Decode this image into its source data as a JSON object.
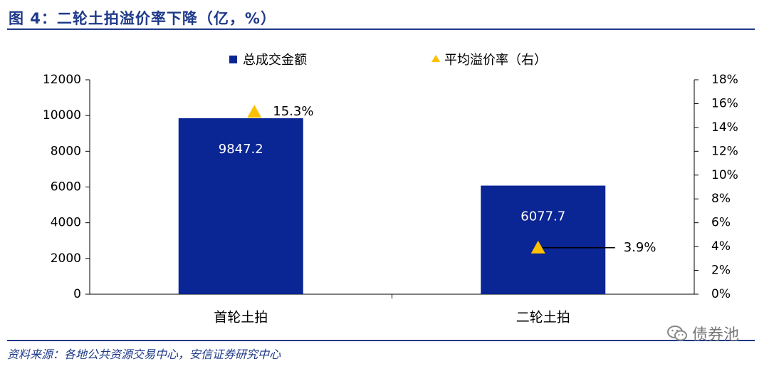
{
  "header": {
    "title": "图 4：二轮土拍溢价率下降（亿，%）"
  },
  "footer": {
    "source": "资料来源：各地公共资源交易中心，安信证券研究中心"
  },
  "watermark": {
    "text": "债券池",
    "icon": "wechat-icon"
  },
  "colors": {
    "accent": "#1F3A8A",
    "bar": "#0A2594",
    "marker": "#FFC000"
  },
  "chart_data": {
    "type": "bar",
    "categories": [
      "首轮土拍",
      "二轮土拍"
    ],
    "series": [
      {
        "name": "总成交金额",
        "type": "bar",
        "axis": "left",
        "values": [
          9847.2,
          6077.7
        ],
        "labels": [
          "9847.2",
          "6077.7"
        ]
      },
      {
        "name": "平均溢价率（右）",
        "type": "scatter",
        "axis": "right",
        "values": [
          15.3,
          3.9
        ],
        "labels": [
          "15.3%",
          "3.9%"
        ]
      }
    ],
    "y_left": {
      "min": 0,
      "max": 12000,
      "ticks": [
        "0",
        "2000",
        "4000",
        "6000",
        "8000",
        "10000",
        "12000"
      ]
    },
    "y_right": {
      "min": 0,
      "max": 18,
      "ticks": [
        "0%",
        "2%",
        "4%",
        "6%",
        "8%",
        "10%",
        "12%",
        "14%",
        "16%",
        "18%"
      ]
    },
    "legend": "top",
    "grid": false
  }
}
